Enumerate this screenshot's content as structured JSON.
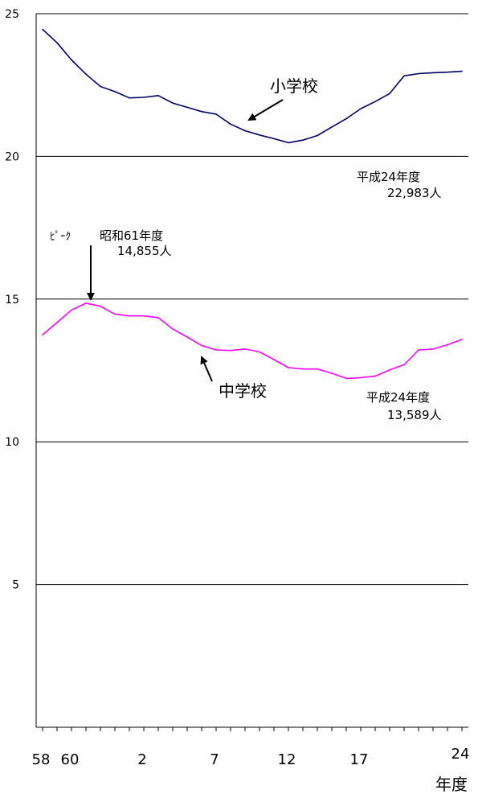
{
  "chart_data": {
    "type": "line",
    "title": "",
    "xlabel": "年度",
    "ylabel": "",
    "ylim": [
      0,
      25
    ],
    "yticks": [
      5,
      10,
      15,
      20,
      25
    ],
    "x_start": 58,
    "x_end": 24,
    "x_tick_labels": [
      "58",
      "60",
      "2",
      "7",
      "12",
      "17",
      "24"
    ],
    "x_tick_index": [
      0,
      2,
      7,
      12,
      17,
      22,
      29
    ],
    "gridlines": true,
    "series": [
      {
        "name": "小学校",
        "color": "#000066",
        "values": [
          24.45,
          23.98,
          23.38,
          22.88,
          22.45,
          22.27,
          22.05,
          22.07,
          22.13,
          21.87,
          21.72,
          21.57,
          21.48,
          21.13,
          20.9,
          20.75,
          20.62,
          20.48,
          20.57,
          20.73,
          21.03,
          21.32,
          21.67,
          21.92,
          22.2,
          22.82,
          22.9,
          22.93,
          22.95,
          22.983
        ]
      },
      {
        "name": "中学校",
        "color": "#ff00ff",
        "values": [
          13.75,
          14.18,
          14.62,
          14.855,
          14.75,
          14.47,
          14.41,
          14.41,
          14.35,
          13.95,
          13.67,
          13.37,
          13.22,
          13.2,
          13.25,
          13.15,
          12.88,
          12.6,
          12.55,
          12.55,
          12.4,
          12.22,
          12.25,
          12.3,
          12.52,
          12.7,
          13.22,
          13.25,
          13.4,
          13.589
        ]
      }
    ],
    "annotations": {
      "elementary_label": "小学校",
      "junior_label": "中学校",
      "peak_label": "ﾋﾟｰｸ",
      "peak_year": "昭和61年度",
      "peak_value": "14,855人",
      "elem_end_year": "平成24年度",
      "elem_end_value": "22,983人",
      "junior_end_year": "平成24年度",
      "junior_end_value": "13,589人"
    }
  }
}
